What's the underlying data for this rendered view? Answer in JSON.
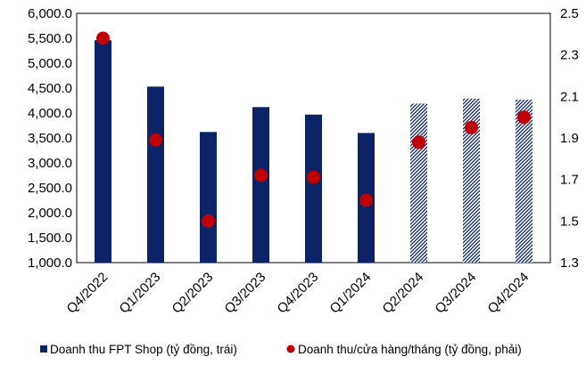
{
  "chart_data": {
    "type": "bar",
    "title": "",
    "categories": [
      "Q4/2022",
      "Q1/2023",
      "Q2/2023",
      "Q3/2023",
      "Q4/2023",
      "Q1/2024",
      "Q2/2024",
      "Q3/2024",
      "Q4/2024"
    ],
    "series": [
      {
        "name": "Doanh thu FPT Shop (tỷ đồng, trái)",
        "type": "bar",
        "axis": "left",
        "color": "#0b2467",
        "values": [
          5460,
          4530,
          3620,
          4120,
          3970,
          3600,
          4190,
          4290,
          4270
        ],
        "forecast_from_index": 6,
        "forecast_style": "hatched"
      },
      {
        "name": "Doanh thu/cửa hàng/tháng (tỷ đồng, phải)",
        "type": "scatter",
        "axis": "right",
        "color": "#c00000",
        "values": [
          2.38,
          1.89,
          1.5,
          1.72,
          1.71,
          1.6,
          1.88,
          1.95,
          2.0
        ]
      }
    ],
    "y_left": {
      "ylim": [
        1000,
        6000
      ],
      "ticks": [
        1000,
        1500,
        2000,
        2500,
        3000,
        3500,
        4000,
        4500,
        5000,
        5500,
        6000
      ],
      "tick_labels": [
        "1,000.0",
        "1,500.0",
        "2,000.0",
        "2,500.0",
        "3,000.0",
        "3,500.0",
        "4,000.0",
        "4,500.0",
        "5,000.0",
        "5,500.0",
        "6,000.0"
      ]
    },
    "y_right": {
      "ylim": [
        1.3,
        2.5
      ],
      "ticks": [
        1.3,
        1.5,
        1.7,
        1.9,
        2.1,
        2.3,
        2.5
      ],
      "tick_labels": [
        "1.3",
        "1.5",
        "1.7",
        "1.9",
        "2.1",
        "2.3",
        "2.5"
      ]
    },
    "xlabel": "",
    "ylabel": "",
    "grid": false,
    "legend_position": "bottom"
  }
}
